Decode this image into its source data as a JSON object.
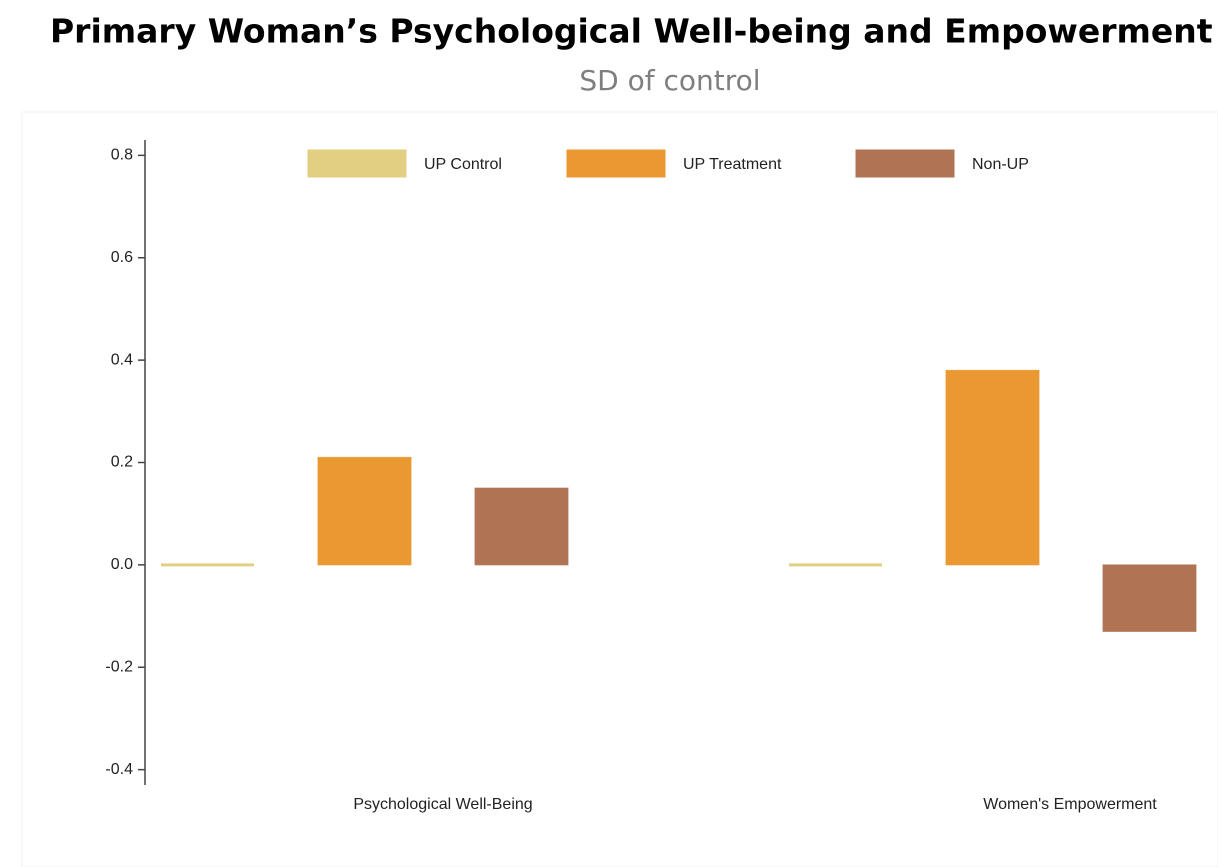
{
  "chart_data": {
    "type": "bar",
    "title": "Primary Woman’s Psychological Well-being and Empowerment",
    "subtitle": "SD of control",
    "categories": [
      "Psychological Well-Being",
      "Women's Empowerment"
    ],
    "series": [
      {
        "name": "UP Control",
        "color": "#e2cf82",
        "values": [
          0,
          0
        ]
      },
      {
        "name": "UP Treatment",
        "color": "#ea9832",
        "values": [
          0.21,
          0.38
        ]
      },
      {
        "name": "Non-UP",
        "color": "#b07354",
        "values": [
          0.15,
          -0.13
        ]
      }
    ],
    "ylim": [
      -0.43,
      0.83
    ],
    "yticks": [
      0.8,
      0.6,
      0.4,
      0.2,
      {
        "value": 0,
        "label": "0.0"
      },
      -0.2,
      -0.4
    ],
    "legend": "top"
  }
}
